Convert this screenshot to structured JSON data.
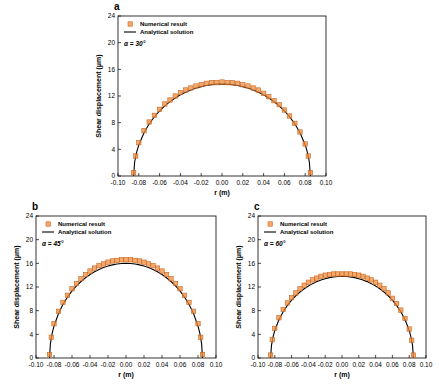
{
  "chart_data": [
    {
      "type": "scatter",
      "title": "a",
      "annotation": "α = 30°",
      "xlabel": "r (m)",
      "ylabel": "Shear displacement (μm)",
      "xlim": [
        -0.1,
        0.1
      ],
      "xticks": [
        {
          "value": -0.1,
          "label": "-0.10"
        },
        {
          "value": -0.08,
          "label": "-0.08"
        },
        {
          "value": -0.06,
          "label": "-0.06"
        },
        {
          "value": -0.04,
          "label": "-0.04"
        },
        {
          "value": -0.02,
          "label": "-0.02"
        },
        {
          "value": 0,
          "label": "0.00"
        },
        {
          "value": 0.02,
          "label": "0.02"
        },
        {
          "value": 0.04,
          "label": "0.04"
        },
        {
          "value": 0.06,
          "label": "0.06"
        },
        {
          "value": 0.08,
          "label": "0.08"
        },
        {
          "value": 0.1,
          "label": "0.10"
        }
      ],
      "ylim": [
        0,
        24
      ],
      "yticks": [
        0,
        4,
        8,
        12,
        16,
        20,
        24
      ],
      "grid": false,
      "legend": "upper left",
      "series": [
        {
          "name": "Numerical result",
          "type": "scatter",
          "color": "#f08c3c",
          "marker": "square",
          "x": [
            -0.085,
            -0.083,
            -0.08,
            -0.075,
            -0.07,
            -0.065,
            -0.06,
            -0.055,
            -0.05,
            -0.045,
            -0.04,
            -0.035,
            -0.03,
            -0.025,
            -0.02,
            -0.015,
            -0.01,
            -0.005,
            0,
            0.005,
            0.01,
            0.015,
            0.02,
            0.025,
            0.03,
            0.035,
            0.04,
            0.045,
            0.05,
            0.055,
            0.06,
            0.065,
            0.07,
            0.075,
            0.08,
            0.083,
            0.085
          ],
          "values": [
            0.5,
            3.0,
            5.0,
            6.8,
            8.1,
            9.1,
            10.0,
            10.8,
            11.4,
            12.0,
            12.5,
            12.9,
            13.2,
            13.5,
            13.7,
            13.9,
            14.0,
            14.0,
            14.1,
            14.0,
            14.0,
            13.9,
            13.7,
            13.5,
            13.2,
            12.9,
            12.4,
            11.9,
            11.3,
            10.7,
            9.9,
            9.0,
            7.9,
            6.6,
            4.8,
            3.0,
            0.5
          ]
        },
        {
          "name": "Analytical solution",
          "type": "line",
          "color": "#000000",
          "line_style": "solid",
          "x": [
            -0.085,
            -0.084,
            -0.082,
            -0.08,
            -0.075,
            -0.07,
            -0.065,
            -0.06,
            -0.055,
            -0.05,
            -0.045,
            -0.04,
            -0.035,
            -0.03,
            -0.025,
            -0.02,
            -0.015,
            -0.01,
            -0.005,
            0,
            0.005,
            0.01,
            0.015,
            0.02,
            0.025,
            0.03,
            0.035,
            0.04,
            0.045,
            0.05,
            0.055,
            0.06,
            0.065,
            0.07,
            0.075,
            0.08,
            0.082,
            0.084,
            0.085
          ],
          "values": [
            0,
            2.1,
            3.63,
            4.66,
            6.5,
            7.83,
            8.89,
            9.78,
            10.52,
            11.16,
            11.71,
            12.18,
            12.57,
            12.91,
            13.19,
            13.41,
            13.58,
            13.7,
            13.78,
            13.8,
            13.78,
            13.7,
            13.58,
            13.41,
            13.19,
            12.91,
            12.57,
            12.18,
            11.71,
            11.16,
            10.52,
            9.78,
            8.89,
            7.83,
            6.5,
            4.66,
            3.63,
            2.1,
            0
          ]
        }
      ]
    },
    {
      "type": "scatter",
      "title": "b",
      "annotation": "α = 45°",
      "xlabel": "r (m)",
      "ylabel": "Shear displacement (μm)",
      "xlim": [
        -0.1,
        0.1
      ],
      "xticks": [
        {
          "value": -0.1,
          "label": "-0.10"
        },
        {
          "value": -0.08,
          "label": "-0.08"
        },
        {
          "value": -0.06,
          "label": "-0.06"
        },
        {
          "value": -0.04,
          "label": "-0.04"
        },
        {
          "value": -0.02,
          "label": "-0.02"
        },
        {
          "value": 0,
          "label": "0.00"
        },
        {
          "value": 0.02,
          "label": "0.02"
        },
        {
          "value": 0.04,
          "label": "0.04"
        },
        {
          "value": 0.06,
          "label": "0.06"
        },
        {
          "value": 0.08,
          "label": "0.08"
        },
        {
          "value": 0.1,
          "label": "0.10"
        }
      ],
      "ylim": [
        0,
        24
      ],
      "yticks": [
        0,
        4,
        8,
        12,
        16,
        20,
        24
      ],
      "grid": false,
      "legend": "upper left",
      "series": [
        {
          "name": "Numerical result",
          "type": "scatter",
          "color": "#f08c3c",
          "marker": "square",
          "x": [
            -0.085,
            -0.083,
            -0.08,
            -0.075,
            -0.07,
            -0.065,
            -0.06,
            -0.055,
            -0.05,
            -0.045,
            -0.04,
            -0.035,
            -0.03,
            -0.025,
            -0.02,
            -0.015,
            -0.01,
            -0.005,
            0,
            0.005,
            0.01,
            0.015,
            0.02,
            0.025,
            0.03,
            0.035,
            0.04,
            0.045,
            0.05,
            0.055,
            0.06,
            0.065,
            0.07,
            0.075,
            0.08,
            0.083,
            0.085
          ],
          "values": [
            0.6,
            3.5,
            5.8,
            7.9,
            9.4,
            10.6,
            11.7,
            12.6,
            13.4,
            14.1,
            14.7,
            15.2,
            15.6,
            15.9,
            16.2,
            16.4,
            16.5,
            16.6,
            16.6,
            16.6,
            16.5,
            16.4,
            16.2,
            15.9,
            15.6,
            15.2,
            14.7,
            14.1,
            13.4,
            12.6,
            11.7,
            10.6,
            9.4,
            7.9,
            5.8,
            3.5,
            0.6
          ]
        },
        {
          "name": "Analytical solution",
          "type": "line",
          "color": "#000000",
          "line_style": "solid",
          "x": [
            -0.085,
            -0.084,
            -0.082,
            -0.08,
            -0.075,
            -0.07,
            -0.065,
            -0.06,
            -0.055,
            -0.05,
            -0.045,
            -0.04,
            -0.035,
            -0.03,
            -0.025,
            -0.02,
            -0.015,
            -0.01,
            -0.005,
            0,
            0.005,
            0.01,
            0.015,
            0.02,
            0.025,
            0.03,
            0.035,
            0.04,
            0.045,
            0.05,
            0.055,
            0.06,
            0.065,
            0.07,
            0.075,
            0.08,
            0.082,
            0.084,
            0.085
          ],
          "values": [
            0,
            2.43,
            4.21,
            5.4,
            7.53,
            9.07,
            10.3,
            11.33,
            12.19,
            12.93,
            13.57,
            14.12,
            14.57,
            14.96,
            15.29,
            15.54,
            15.74,
            15.88,
            15.97,
            16.0,
            15.97,
            15.88,
            15.74,
            15.54,
            15.29,
            14.96,
            14.57,
            14.12,
            13.57,
            12.93,
            12.19,
            11.33,
            10.3,
            9.07,
            7.53,
            5.4,
            4.21,
            2.43,
            0
          ]
        }
      ]
    },
    {
      "type": "scatter",
      "title": "c",
      "annotation": "α = 60°",
      "xlabel": "r (m)",
      "ylabel": "Shear displacement (μm)",
      "xlim": [
        -0.1,
        0.1
      ],
      "xticks": [
        {
          "value": -0.1,
          "label": "-0.10"
        },
        {
          "value": -0.08,
          "label": "-0.08"
        },
        {
          "value": -0.06,
          "label": "-0.06"
        },
        {
          "value": -0.04,
          "label": "-0.04"
        },
        {
          "value": -0.02,
          "label": "-0.02"
        },
        {
          "value": 0,
          "label": "0.00"
        },
        {
          "value": 0.02,
          "label": "0.02"
        },
        {
          "value": 0.04,
          "label": "0.04"
        },
        {
          "value": 0.06,
          "label": "0.06"
        },
        {
          "value": 0.08,
          "label": "0.08"
        },
        {
          "value": 0.1,
          "label": "0.10"
        }
      ],
      "ylim": [
        0,
        24
      ],
      "yticks": [
        0,
        4,
        8,
        12,
        16,
        20,
        24
      ],
      "grid": false,
      "legend": "upper left",
      "series": [
        {
          "name": "Numerical result",
          "type": "scatter",
          "color": "#f08c3c",
          "marker": "square",
          "x": [
            -0.085,
            -0.083,
            -0.08,
            -0.075,
            -0.07,
            -0.065,
            -0.06,
            -0.055,
            -0.05,
            -0.045,
            -0.04,
            -0.035,
            -0.03,
            -0.025,
            -0.02,
            -0.015,
            -0.01,
            -0.005,
            0,
            0.005,
            0.01,
            0.015,
            0.02,
            0.025,
            0.03,
            0.035,
            0.04,
            0.045,
            0.05,
            0.055,
            0.06,
            0.065,
            0.07,
            0.075,
            0.08,
            0.083,
            0.085
          ],
          "values": [
            0.5,
            3.1,
            5.0,
            6.8,
            8.2,
            9.3,
            10.2,
            11.0,
            11.7,
            12.3,
            12.8,
            13.2,
            13.5,
            13.8,
            14.0,
            14.1,
            14.2,
            14.2,
            14.2,
            14.2,
            14.2,
            14.1,
            14.0,
            13.8,
            13.5,
            13.2,
            12.8,
            12.3,
            11.7,
            11.0,
            10.1,
            9.2,
            8.1,
            6.7,
            4.9,
            3.0,
            0.5
          ]
        },
        {
          "name": "Analytical solution",
          "type": "line",
          "color": "#000000",
          "line_style": "solid",
          "x": [
            -0.085,
            -0.084,
            -0.082,
            -0.08,
            -0.075,
            -0.07,
            -0.065,
            -0.06,
            -0.055,
            -0.05,
            -0.045,
            -0.04,
            -0.035,
            -0.03,
            -0.025,
            -0.02,
            -0.015,
            -0.01,
            -0.005,
            0,
            0.005,
            0.01,
            0.015,
            0.02,
            0.025,
            0.03,
            0.035,
            0.04,
            0.045,
            0.05,
            0.055,
            0.06,
            0.065,
            0.07,
            0.075,
            0.08,
            0.082,
            0.084,
            0.085
          ],
          "values": [
            0,
            2.1,
            3.63,
            4.66,
            6.5,
            7.83,
            8.89,
            9.78,
            10.52,
            11.16,
            11.71,
            12.18,
            12.57,
            12.91,
            13.19,
            13.41,
            13.58,
            13.7,
            13.78,
            13.8,
            13.78,
            13.7,
            13.58,
            13.41,
            13.19,
            12.91,
            12.57,
            12.18,
            11.71,
            11.16,
            10.52,
            9.78,
            8.89,
            7.83,
            6.5,
            4.66,
            3.63,
            2.1,
            0
          ]
        }
      ]
    }
  ]
}
